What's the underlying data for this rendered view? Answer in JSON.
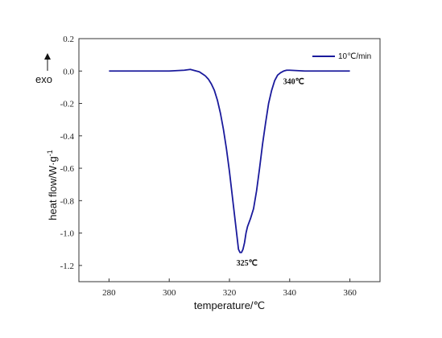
{
  "chart_data": {
    "type": "line",
    "xlabel": "temperature/℃",
    "ylabel": "heat flow/W·g",
    "ylabel_superscript": "-1",
    "exo_label": "exo",
    "xlim": [
      270,
      370
    ],
    "ylim": [
      -1.3,
      0.2
    ],
    "x_ticks": [
      280,
      300,
      320,
      340,
      360
    ],
    "y_ticks": [
      0.2,
      0.0,
      -0.2,
      -0.4,
      -0.6,
      -0.8,
      -1.0,
      -1.2
    ],
    "y_tick_labels": [
      "0.2",
      "0.0",
      "-0.2",
      "-0.4",
      "-0.6",
      "-0.8",
      "-1.0",
      "-1.2"
    ],
    "grid": false,
    "legend_position": "top-right",
    "series": [
      {
        "name": "10℃/min",
        "color": "#1a1a9c",
        "x": [
          280,
          290,
          300,
          305,
          307,
          308,
          310,
          312,
          313,
          314,
          315,
          316,
          317,
          318,
          319,
          320,
          321,
          322,
          322.5,
          323,
          323.5,
          324,
          324.5,
          325,
          325.5,
          326,
          327,
          328,
          329,
          330,
          331,
          332,
          333,
          334,
          335,
          336,
          337,
          338,
          339,
          340,
          345,
          350,
          355,
          360
        ],
        "y": [
          0.0,
          0.0,
          0.0,
          0.005,
          0.01,
          0.005,
          -0.005,
          -0.03,
          -0.05,
          -0.08,
          -0.12,
          -0.18,
          -0.26,
          -0.36,
          -0.48,
          -0.62,
          -0.78,
          -0.94,
          -1.02,
          -1.1,
          -1.12,
          -1.12,
          -1.1,
          -1.06,
          -1.0,
          -0.96,
          -0.91,
          -0.85,
          -0.74,
          -0.6,
          -0.45,
          -0.32,
          -0.2,
          -0.12,
          -0.06,
          -0.025,
          -0.01,
          0.0,
          0.005,
          0.005,
          0.0,
          0.0,
          0.0,
          0.0
        ]
      }
    ],
    "annotations": [
      {
        "text": "325℃",
        "x": 325,
        "y": -1.12
      },
      {
        "text": "340℃",
        "x": 340,
        "y": 0.0
      }
    ]
  }
}
